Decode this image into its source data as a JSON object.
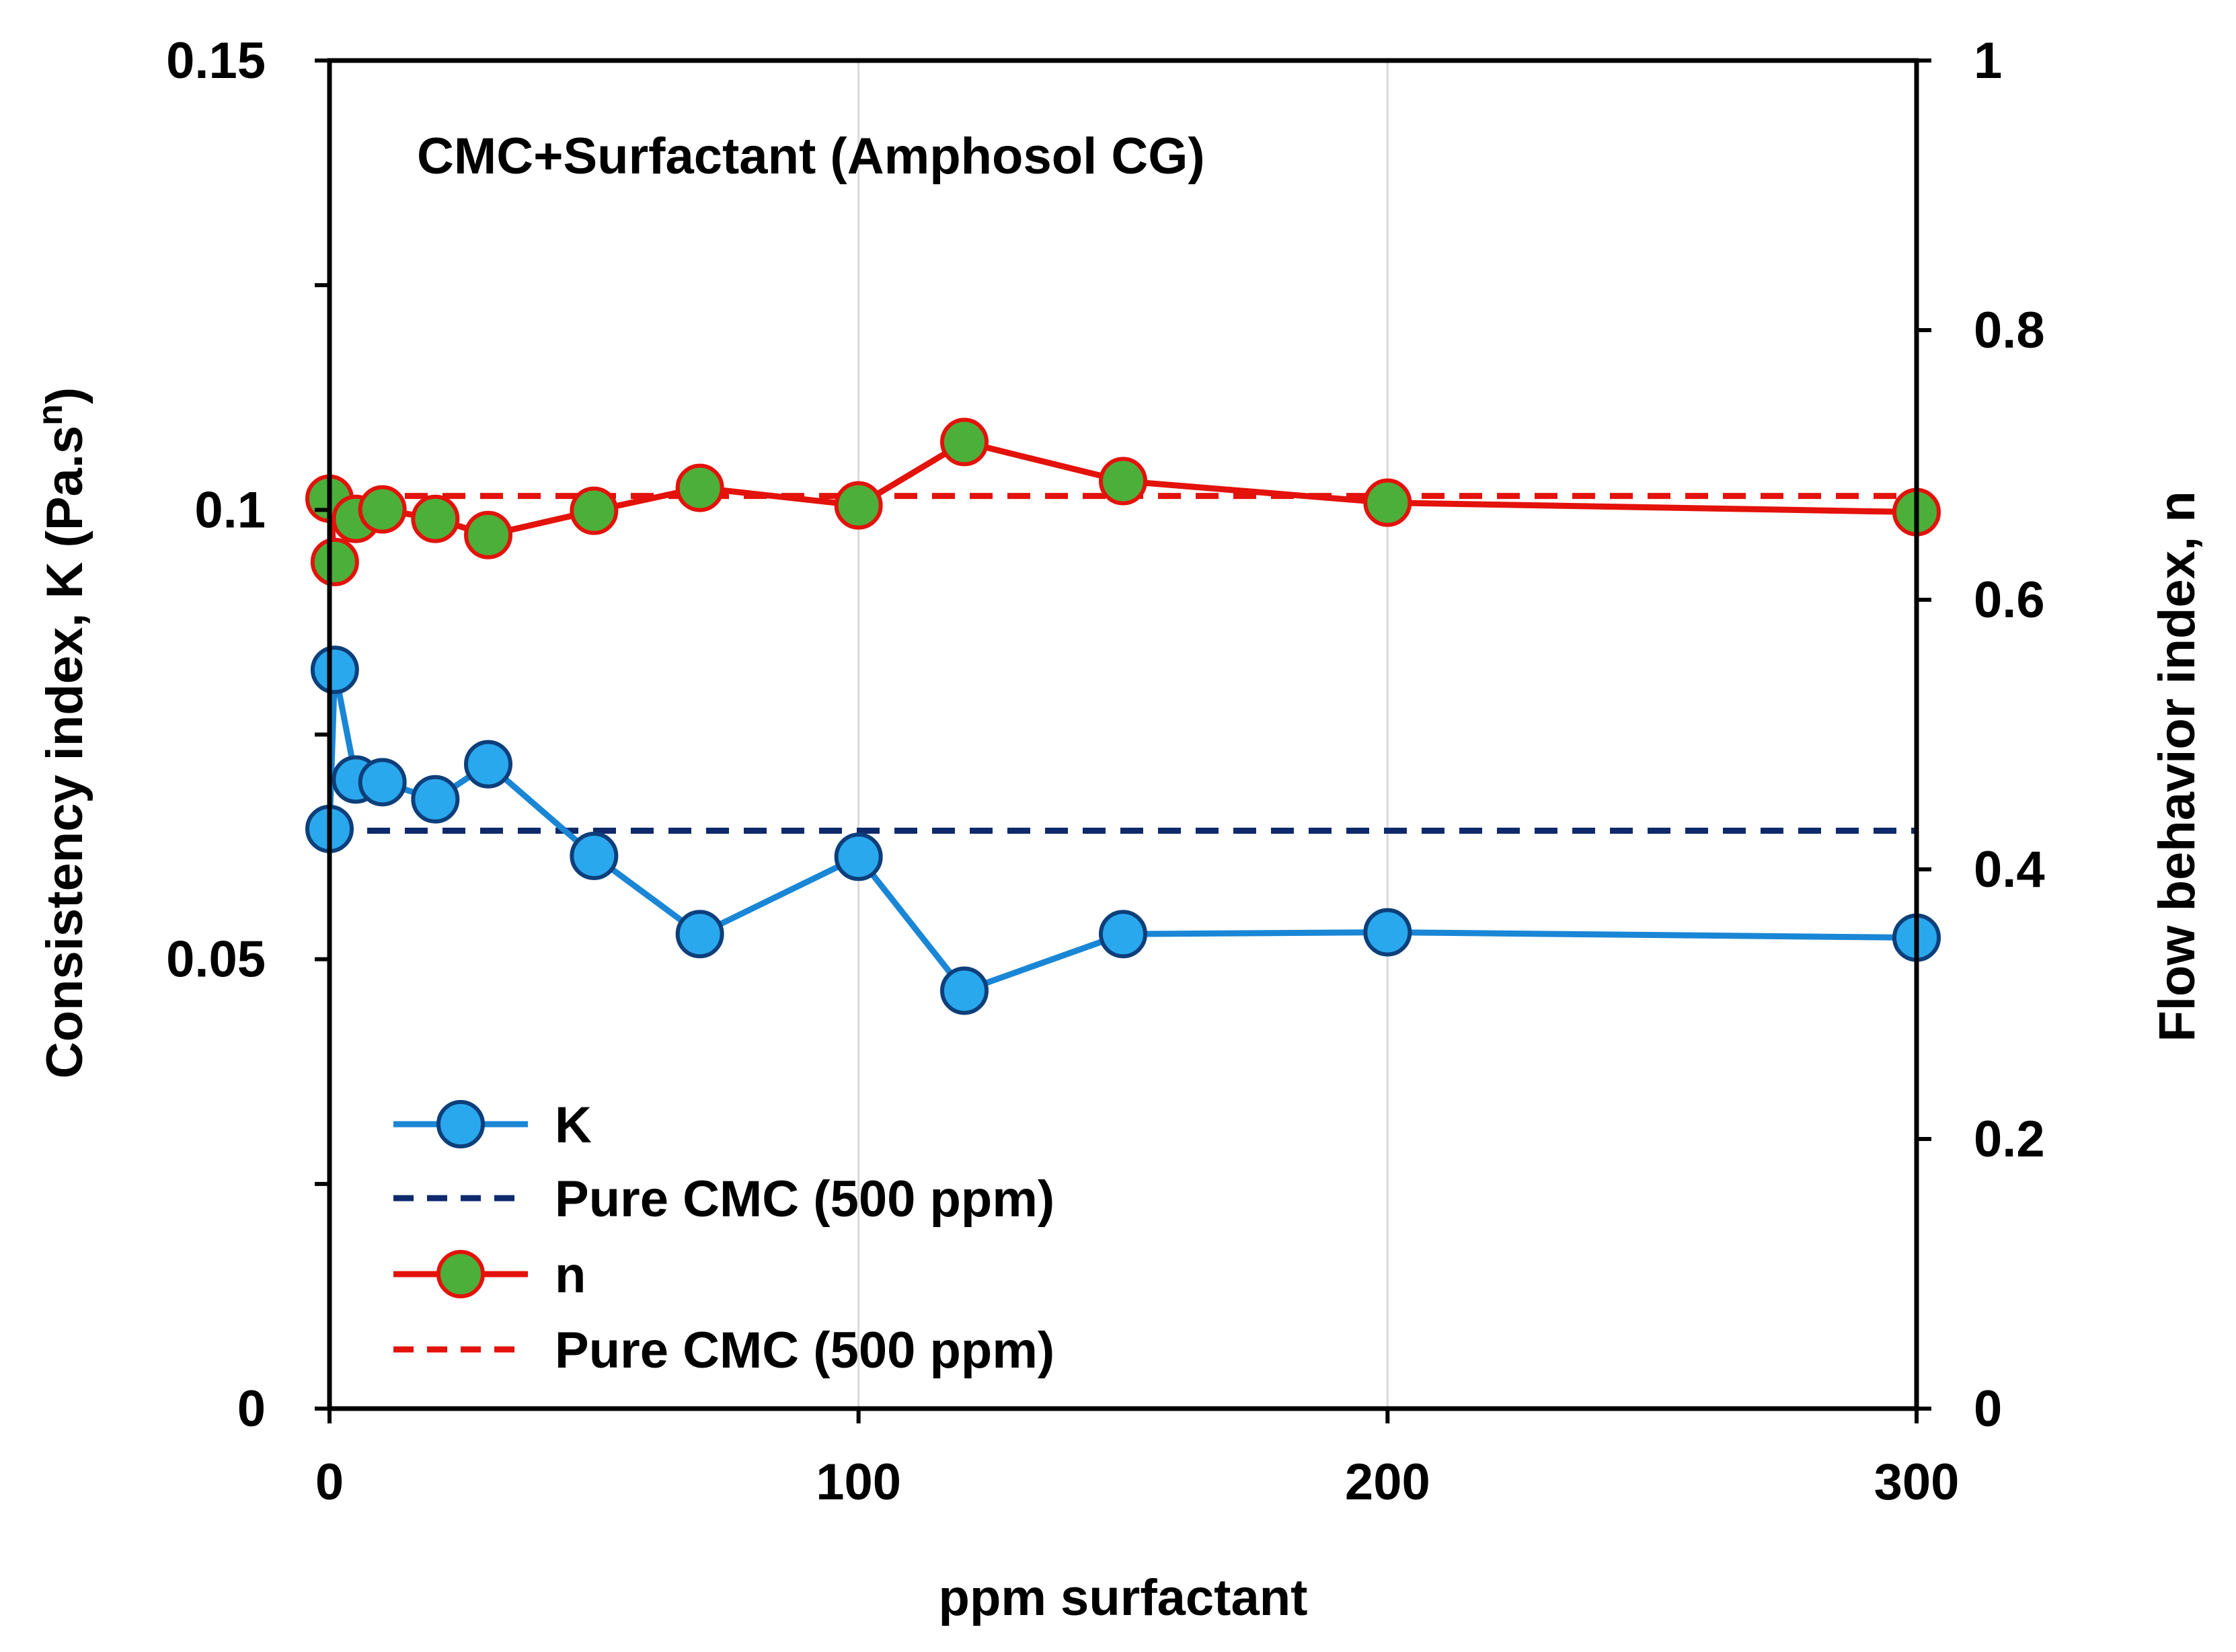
{
  "chart_data": {
    "type": "line",
    "title": "CMC+Surfactant (Amphosol CG)",
    "xlabel": "ppm surfactant",
    "ylabel_left_main": "Consistency index, K (Pa.s",
    "ylabel_left_sup": "n",
    "ylabel_left_end": ")",
    "ylabel_right": "Flow behavior index, n",
    "xlim": [
      0,
      300
    ],
    "ylim_left": [
      0,
      0.15
    ],
    "ylim_right": [
      0,
      1
    ],
    "x_ticks": [
      0,
      100,
      200,
      300
    ],
    "x_tick_labels": [
      "0",
      "100",
      "200",
      "300"
    ],
    "y_left_ticks": [
      0,
      0.05,
      0.1,
      0.15
    ],
    "y_left_tick_labels": [
      "0",
      "0.05",
      "0.1",
      "0.15"
    ],
    "y_left_minor_ticks": [
      0.025,
      0.075,
      0.125
    ],
    "y_right_ticks": [
      0,
      0.2,
      0.4,
      0.6,
      0.8,
      1
    ],
    "y_right_tick_labels": [
      "0",
      "0.2",
      "0.4",
      "0.6",
      "0.8",
      "1"
    ],
    "grid": "vertical",
    "legend_position": "bottom-left",
    "series": [
      {
        "name": "K",
        "axis": "left",
        "style": "line-marker",
        "line_color": "#1a86d6",
        "marker_fill": "#29a8ee",
        "marker_edge": "#0d3f7a",
        "x": [
          0,
          1,
          5,
          10,
          20,
          30,
          50,
          70,
          100,
          120,
          150,
          200,
          300
        ],
        "values": [
          0.0645,
          0.0822,
          0.07,
          0.0697,
          0.0678,
          0.0717,
          0.0615,
          0.0528,
          0.0614,
          0.0465,
          0.0528,
          0.053,
          0.0524
        ]
      },
      {
        "name": "Pure CMC (500 ppm)",
        "axis": "left",
        "style": "dashed",
        "line_color": "#0f2a6b",
        "x": [
          0,
          300
        ],
        "values": [
          0.0643,
          0.0643
        ]
      },
      {
        "name": "n",
        "axis": "right",
        "style": "line-marker",
        "line_color": "#e3120b",
        "marker_fill": "#4caf3a",
        "marker_edge": "#e3120b",
        "x": [
          0,
          1,
          5,
          10,
          20,
          30,
          50,
          70,
          100,
          120,
          150,
          200,
          300
        ],
        "values": [
          0.675,
          0.628,
          0.66,
          0.667,
          0.66,
          0.648,
          0.666,
          0.683,
          0.67,
          0.717,
          0.688,
          0.672,
          0.665
        ]
      },
      {
        "name": "Pure CMC (500 ppm)",
        "axis": "right",
        "style": "dashed",
        "line_color": "#e3120b",
        "x": [
          0,
          300
        ],
        "values": [
          0.677,
          0.677
        ]
      }
    ]
  }
}
